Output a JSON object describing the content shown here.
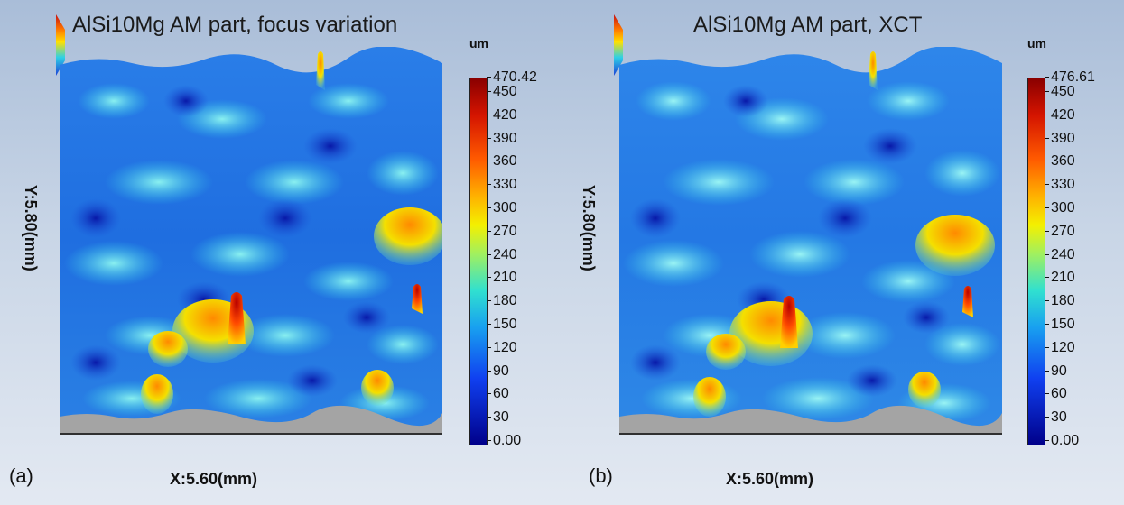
{
  "panels": [
    {
      "label": "(a)",
      "title": "AlSi10Mg AM part, focus variation",
      "x_axis": "X:5.60(mm)",
      "y_axis": "Y:5.80(mm)",
      "unit": "um",
      "max_value": "470.42",
      "ticks": [
        "450",
        "420",
        "390",
        "360",
        "330",
        "300",
        "270",
        "240",
        "210",
        "180",
        "150",
        "120",
        "90",
        "60",
        "30",
        "0.00"
      ]
    },
    {
      "label": "(b)",
      "title": "AlSi10Mg AM part, XCT",
      "x_axis": "X:5.60(mm)",
      "y_axis": "Y:5.80(mm)",
      "unit": "um",
      "max_value": "476.61",
      "ticks": [
        "450",
        "420",
        "390",
        "360",
        "330",
        "300",
        "270",
        "240",
        "210",
        "180",
        "150",
        "120",
        "90",
        "60",
        "30",
        "0.00"
      ]
    }
  ]
}
